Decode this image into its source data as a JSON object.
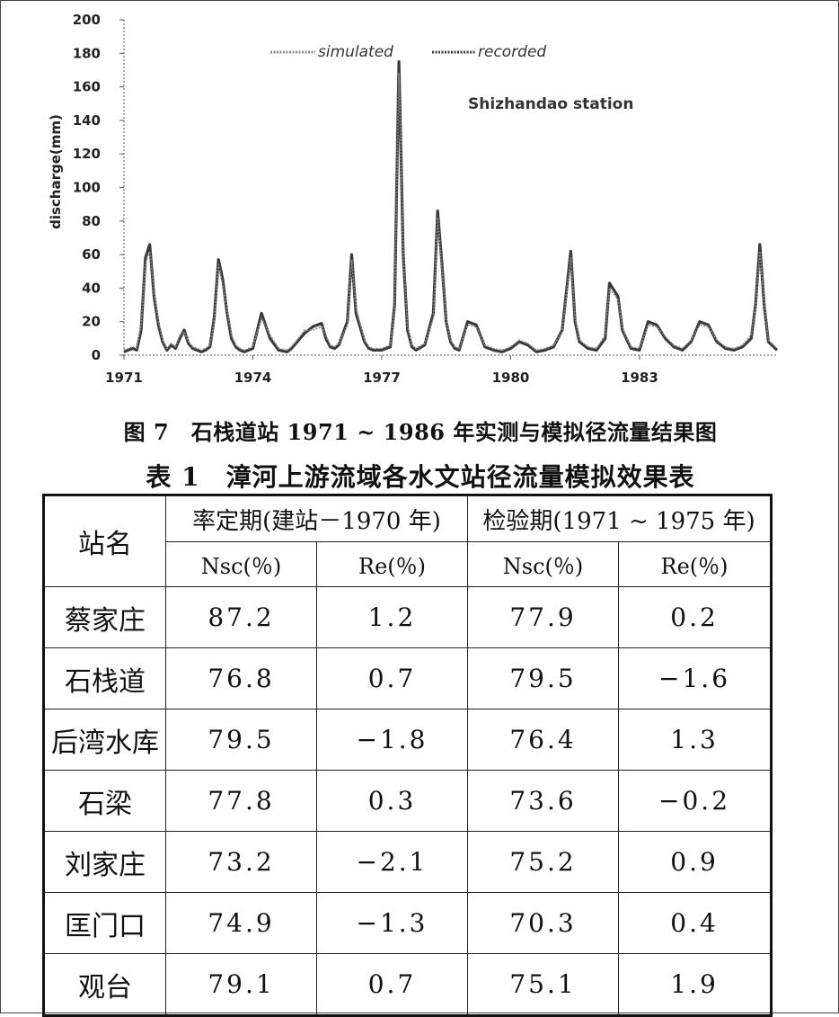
{
  "chart_data": {
    "type": "line",
    "title": "Shizhandao station",
    "ylabel": "discharge(mm)",
    "xlabel": "",
    "ylim": [
      0,
      200
    ],
    "yticks": [
      0,
      20,
      40,
      60,
      80,
      100,
      120,
      140,
      160,
      180,
      200
    ],
    "xlim": [
      1971,
      1986.2
    ],
    "xticks": [
      1971,
      1974,
      1977,
      1980,
      1983
    ],
    "legend": [
      "simulated",
      "recorded"
    ],
    "legend_position": "top-center",
    "series": [
      {
        "name": "recorded",
        "x": [
          1971.0,
          1971.2,
          1971.3,
          1971.4,
          1971.5,
          1971.6,
          1971.7,
          1971.8,
          1971.9,
          1972.0,
          1972.1,
          1972.2,
          1972.3,
          1972.4,
          1972.5,
          1972.6,
          1972.7,
          1972.8,
          1972.9,
          1973.0,
          1973.1,
          1973.2,
          1973.3,
          1973.4,
          1973.5,
          1973.6,
          1973.7,
          1973.8,
          1973.9,
          1974.0,
          1974.2,
          1974.4,
          1974.6,
          1974.8,
          1974.9,
          1975.0,
          1975.2,
          1975.4,
          1975.6,
          1975.7,
          1975.8,
          1975.9,
          1976.0,
          1976.2,
          1976.3,
          1976.4,
          1976.6,
          1976.7,
          1976.8,
          1977.0,
          1977.2,
          1977.3,
          1977.4,
          1977.5,
          1977.6,
          1977.7,
          1977.8,
          1978.0,
          1978.2,
          1978.3,
          1978.4,
          1978.5,
          1978.6,
          1978.7,
          1978.8,
          1979.0,
          1979.2,
          1979.4,
          1979.6,
          1979.8,
          1980.0,
          1980.2,
          1980.4,
          1980.6,
          1980.8,
          1981.0,
          1981.2,
          1981.4,
          1981.5,
          1981.6,
          1981.8,
          1982.0,
          1982.2,
          1982.3,
          1982.5,
          1982.6,
          1982.8,
          1983.0,
          1983.2,
          1983.4,
          1983.6,
          1983.8,
          1984.0,
          1984.2,
          1984.4,
          1984.6,
          1984.8,
          1985.0,
          1985.2,
          1985.4,
          1985.6,
          1985.7,
          1985.8,
          1985.9,
          1986.0,
          1986.2
        ],
        "values": [
          2,
          4,
          3,
          15,
          58,
          66,
          35,
          18,
          8,
          3,
          6,
          4,
          10,
          15,
          7,
          4,
          3,
          2,
          3,
          5,
          22,
          57,
          45,
          25,
          10,
          5,
          3,
          2,
          3,
          4,
          25,
          10,
          3,
          2,
          4,
          7,
          13,
          17,
          19,
          10,
          5,
          4,
          6,
          20,
          60,
          25,
          8,
          4,
          3,
          3,
          5,
          30,
          175,
          60,
          15,
          5,
          3,
          6,
          25,
          86,
          55,
          20,
          8,
          4,
          3,
          20,
          18,
          5,
          3,
          2,
          4,
          8,
          6,
          2,
          3,
          5,
          15,
          62,
          20,
          8,
          4,
          3,
          10,
          43,
          35,
          15,
          4,
          3,
          20,
          18,
          10,
          5,
          3,
          8,
          20,
          18,
          8,
          4,
          3,
          5,
          10,
          30,
          66,
          30,
          8,
          3
        ]
      },
      {
        "name": "simulated",
        "x": [
          1971.0,
          1971.2,
          1971.3,
          1971.4,
          1971.5,
          1971.6,
          1971.7,
          1971.8,
          1971.9,
          1972.0,
          1972.1,
          1972.2,
          1972.3,
          1972.4,
          1972.5,
          1972.6,
          1972.7,
          1972.8,
          1972.9,
          1973.0,
          1973.1,
          1973.2,
          1973.3,
          1973.4,
          1973.5,
          1973.6,
          1973.7,
          1973.8,
          1973.9,
          1974.0,
          1974.2,
          1974.4,
          1974.6,
          1974.8,
          1974.9,
          1975.0,
          1975.2,
          1975.4,
          1975.6,
          1975.7,
          1975.8,
          1975.9,
          1976.0,
          1976.2,
          1976.3,
          1976.4,
          1976.6,
          1976.7,
          1976.8,
          1977.0,
          1977.2,
          1977.3,
          1977.4,
          1977.5,
          1977.6,
          1977.7,
          1977.8,
          1978.0,
          1978.2,
          1978.3,
          1978.4,
          1978.5,
          1978.6,
          1978.7,
          1978.8,
          1979.0,
          1979.2,
          1979.4,
          1979.6,
          1979.8,
          1980.0,
          1980.2,
          1980.4,
          1980.6,
          1980.8,
          1981.0,
          1981.2,
          1981.4,
          1981.5,
          1981.6,
          1981.8,
          1982.0,
          1982.2,
          1982.3,
          1982.5,
          1982.6,
          1982.8,
          1983.0,
          1983.2,
          1983.4,
          1983.6,
          1983.8,
          1984.0,
          1984.2,
          1984.4,
          1984.6,
          1984.8,
          1985.0,
          1985.2,
          1985.4,
          1985.6,
          1985.7,
          1985.8,
          1985.9,
          1986.0,
          1986.2
        ],
        "values": [
          3,
          5,
          4,
          18,
          55,
          62,
          38,
          20,
          9,
          4,
          7,
          5,
          12,
          14,
          8,
          5,
          4,
          3,
          4,
          6,
          20,
          54,
          42,
          27,
          12,
          6,
          4,
          3,
          4,
          5,
          22,
          12,
          4,
          3,
          5,
          8,
          15,
          15,
          17,
          12,
          6,
          5,
          7,
          18,
          57,
          28,
          9,
          5,
          4,
          4,
          6,
          28,
          168,
          62,
          17,
          6,
          4,
          7,
          22,
          82,
          52,
          22,
          9,
          5,
          4,
          18,
          17,
          6,
          4,
          3,
          5,
          9,
          7,
          3,
          4,
          6,
          14,
          58,
          22,
          9,
          5,
          4,
          12,
          40,
          33,
          16,
          5,
          4,
          18,
          17,
          11,
          6,
          4,
          9,
          18,
          17,
          9,
          5,
          4,
          6,
          12,
          28,
          62,
          32,
          9,
          4
        ]
      }
    ]
  },
  "figure_caption": "图 7　石栈道站 1971 ~ 1986 年实测与模拟径流量结果图",
  "table": {
    "title": "表 1　漳河上游流域各水文站径流量模拟效果表",
    "station_header": "站名",
    "group_headers": [
      "率定期(建站－1970 年)",
      "检验期(1971 ~ 1975 年)"
    ],
    "metric_headers": [
      "Nsc(％)",
      "Re(％)",
      "Nsc(％)",
      "Re(％)"
    ],
    "rows": [
      {
        "station": "蔡家庄",
        "values": [
          "87.2",
          "1.2",
          "77.9",
          "0.2"
        ]
      },
      {
        "station": "石栈道",
        "values": [
          "76.8",
          "0.7",
          "79.5",
          "−1.6"
        ]
      },
      {
        "station": "后湾水库",
        "values": [
          "79.5",
          "−1.8",
          "76.4",
          "1.3"
        ]
      },
      {
        "station": "石梁",
        "values": [
          "77.8",
          "0.3",
          "73.6",
          "−0.2"
        ]
      },
      {
        "station": "刘家庄",
        "values": [
          "73.2",
          "−2.1",
          "75.2",
          "0.9"
        ]
      },
      {
        "station": "匡门口",
        "values": [
          "74.9",
          "−1.3",
          "70.3",
          "0.4"
        ]
      },
      {
        "station": "观台",
        "values": [
          "79.1",
          "0.7",
          "75.1",
          "1.9"
        ]
      }
    ]
  },
  "colors": {
    "recorded": "#3a3a3a",
    "simulated": "#8a8a8a",
    "axis": "#555555"
  }
}
